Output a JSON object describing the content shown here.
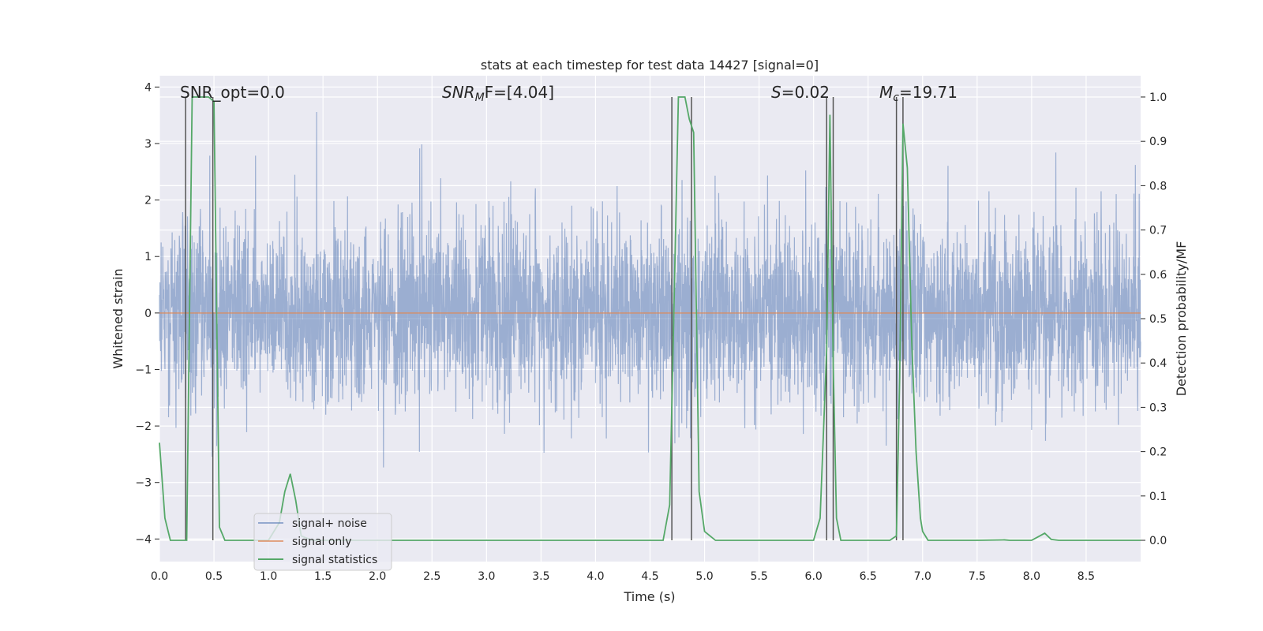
{
  "chart_data": {
    "type": "line",
    "title": "stats at each timestep for test data 14427 [signal=0]",
    "xlabel": "Time (s)",
    "ylabel": "Whitened strain",
    "y2label": "Detection probability/MF",
    "xlim": [
      0.0,
      9.0
    ],
    "ylim": [
      -4.4,
      4.2
    ],
    "y2lim": [
      -0.048,
      1.048
    ],
    "x_ticks": [
      "0.0",
      "0.5",
      "1.0",
      "1.5",
      "2.0",
      "2.5",
      "3.0",
      "3.5",
      "4.0",
      "4.5",
      "5.0",
      "5.5",
      "6.0",
      "6.5",
      "7.0",
      "7.5",
      "8.0",
      "8.5"
    ],
    "y_ticks": [
      "−4",
      "−3",
      "−2",
      "−1",
      "0",
      "1",
      "2",
      "3",
      "4"
    ],
    "y2_ticks": [
      "0.0",
      "0.1",
      "0.2",
      "0.3",
      "0.4",
      "0.5",
      "0.6",
      "0.7",
      "0.8",
      "0.9",
      "1.0"
    ],
    "annotations": {
      "snr_opt": "SNR_opt=0.0",
      "snr_mf_main": "SNR",
      "snr_mf_sub": "M",
      "snr_mf_rest": "F=[4.04]",
      "s_italic": "S",
      "s_rest": "=0.02",
      "mc_main": "M",
      "mc_sub": "c",
      "mc_rest": "=19.71"
    },
    "legend": {
      "position": "lower-left",
      "entries": [
        "signal+ noise",
        "signal only",
        "signal statistics"
      ]
    },
    "colors": {
      "background": "#eaeaf2",
      "grid": "#ffffff",
      "noise": "#4c72b0",
      "signal": "#dd8452",
      "statistics": "#55a868",
      "markers": "#555555",
      "text": "#262626"
    },
    "series": [
      {
        "name": "signal+ noise",
        "kind": "noise",
        "t_range": [
          0.0,
          9.0
        ],
        "samples": 4096,
        "std": 0.8,
        "seed": 14427,
        "clip": [
          -4.0,
          4.0
        ]
      },
      {
        "name": "signal only",
        "kind": "constant",
        "x": [
          0.0,
          9.0
        ],
        "y": [
          0.0,
          0.0
        ]
      },
      {
        "name": "signal statistics",
        "axis": "right",
        "x": [
          0.0,
          0.05,
          0.1,
          0.15,
          0.2,
          0.25,
          0.3,
          0.35,
          0.4,
          0.45,
          0.5,
          0.55,
          0.6,
          0.65,
          0.7,
          0.8,
          0.9,
          1.0,
          1.1,
          1.15,
          1.2,
          1.25,
          1.3,
          1.4,
          1.5,
          2.0,
          3.0,
          4.0,
          4.5,
          4.62,
          4.68,
          4.72,
          4.76,
          4.82,
          4.86,
          4.9,
          4.95,
          5.0,
          5.05,
          5.1,
          5.2,
          5.5,
          6.0,
          6.06,
          6.12,
          6.15,
          6.18,
          6.21,
          6.25,
          6.3,
          6.5,
          6.7,
          6.76,
          6.79,
          6.82,
          6.86,
          6.9,
          6.94,
          6.98,
          7.0,
          7.05,
          7.5,
          7.75,
          7.8,
          8.0,
          8.06,
          8.12,
          8.18,
          8.25,
          8.5,
          9.0
        ],
        "y": [
          0.22,
          0.05,
          0.0,
          0.0,
          0.0,
          0.0,
          1.0,
          1.0,
          1.0,
          1.0,
          0.99,
          0.03,
          0.0,
          0.0,
          0.0,
          0.0,
          0.0,
          0.0,
          0.04,
          0.11,
          0.15,
          0.09,
          0.01,
          0.0,
          0.0,
          0.0,
          0.0,
          0.0,
          0.0,
          0.0,
          0.08,
          0.53,
          1.0,
          1.0,
          0.95,
          0.92,
          0.11,
          0.02,
          0.01,
          0.0,
          0.0,
          0.0,
          0.0,
          0.05,
          0.43,
          0.96,
          0.4,
          0.05,
          0.0,
          0.0,
          0.0,
          0.0,
          0.01,
          0.37,
          0.94,
          0.84,
          0.45,
          0.2,
          0.05,
          0.02,
          0.0,
          0.0,
          0.001,
          0.0,
          0.0,
          0.008,
          0.016,
          0.002,
          0.0,
          0.0,
          0.0
        ]
      }
    ],
    "marker_lines": [
      0.24,
      0.49,
      4.7,
      4.88,
      6.12,
      6.18,
      6.76,
      6.82
    ]
  }
}
